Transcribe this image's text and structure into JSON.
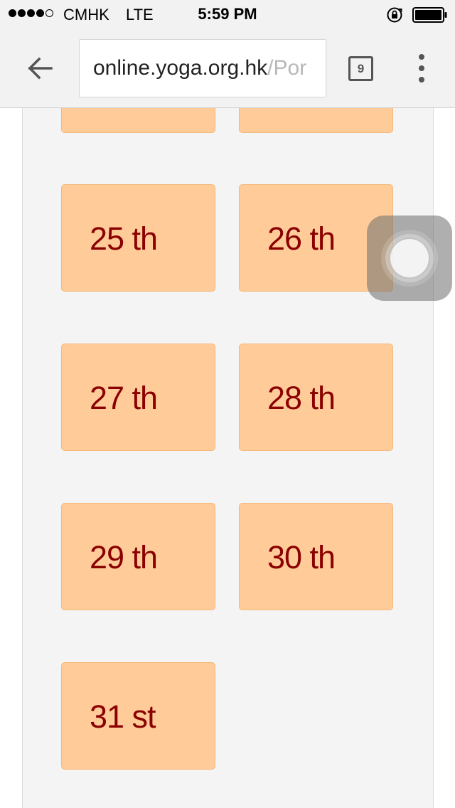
{
  "status_bar": {
    "carrier": "CMHK",
    "network": "LTE",
    "time": "5:59 PM"
  },
  "browser": {
    "url_domain": "online.yoga.org.hk",
    "url_path": "/Por",
    "tab_count": "9"
  },
  "calendar": {
    "days": [
      {
        "label": "25 th"
      },
      {
        "label": "26 th"
      },
      {
        "label": "27 th"
      },
      {
        "label": "28 th"
      },
      {
        "label": "29 th"
      },
      {
        "label": "30 th"
      },
      {
        "label": "31 st"
      }
    ]
  },
  "colors": {
    "tile_background": "#ffcc99",
    "tile_text": "#8b0000",
    "panel_background": "#f4f4f4",
    "toolbar_background": "#f2f2f2"
  }
}
